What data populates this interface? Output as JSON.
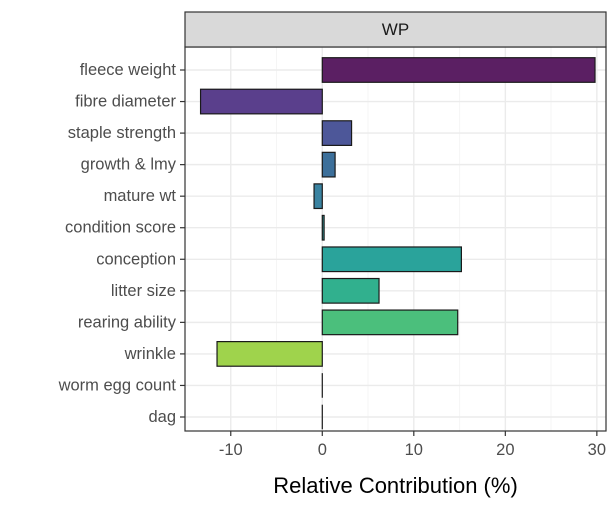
{
  "chart_data": {
    "type": "bar",
    "orientation": "horizontal",
    "facet_label": "WP",
    "xlabel": "Relative Contribution (%)",
    "ylabel": "",
    "xlim": [
      -15,
      31
    ],
    "x_ticks": [
      -10,
      0,
      10,
      20,
      30
    ],
    "grid": true,
    "legend": "none",
    "categories": [
      "fleece weight",
      "fibre diameter",
      "staple strength",
      "growth & lmy",
      "mature wt",
      "condition score",
      "conception",
      "litter size",
      "rearing ability",
      "wrinkle",
      "worm egg count",
      "dag"
    ],
    "values": [
      29.8,
      -13.3,
      3.2,
      1.4,
      -0.9,
      0.2,
      15.2,
      6.2,
      14.8,
      -11.5,
      0.0,
      0.0
    ],
    "bar_colors": [
      "#5b1f63",
      "#5a3f8c",
      "#4d5799",
      "#3c6f9a",
      "#3a83a1",
      "#2e9697",
      "#2aa39b",
      "#31b08e",
      "#4bbf7c",
      "#9fd34c",
      "#b8dc3a",
      "#d8e22d"
    ],
    "colors": {
      "panel_border": "#333333",
      "strip_fill": "#d9d9d9",
      "grid_major": "#ebebeb",
      "grid_minor": "#f5f5f5",
      "axis_text": "#4d4d4d",
      "title_text": "#000000",
      "bar_outline": "#1a1a1a"
    }
  }
}
